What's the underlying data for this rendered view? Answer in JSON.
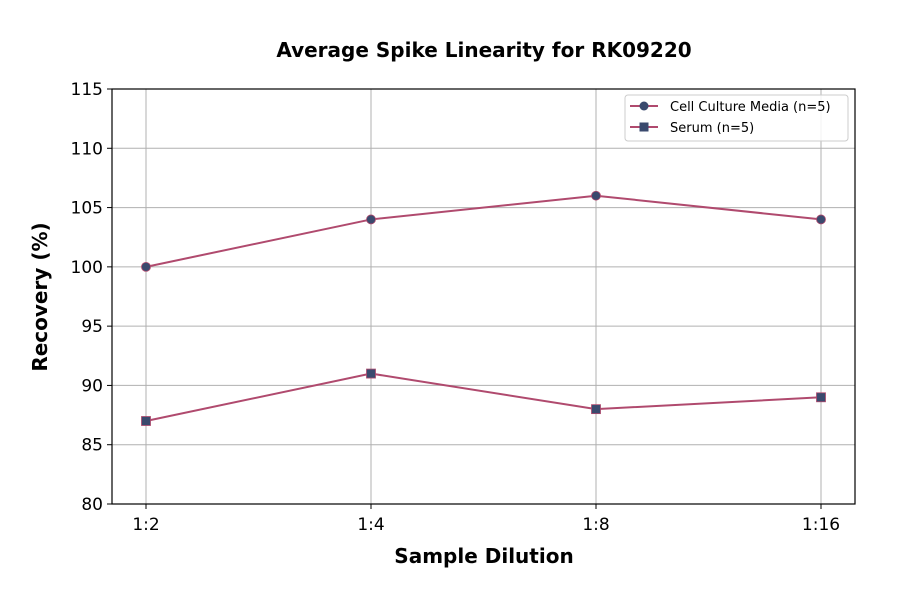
{
  "chart_data": {
    "type": "line",
    "title": "Average Spike Linearity for RK09220",
    "xlabel": "Sample Dilution",
    "ylabel": "Recovery (%)",
    "categories": [
      "1:2",
      "1:4",
      "1:8",
      "1:16"
    ],
    "ylim": [
      80,
      115
    ],
    "yticks": [
      80,
      85,
      90,
      95,
      100,
      105,
      110,
      115
    ],
    "grid": true,
    "legend": "top-right",
    "series": [
      {
        "name": "Cell Culture Media (n=5)",
        "values": [
          100,
          104,
          106,
          104
        ],
        "marker": "circle",
        "line_color": "#b04a6e",
        "marker_color": "#3a4a6e"
      },
      {
        "name": "Serum (n=5)",
        "values": [
          87,
          91,
          88,
          89
        ],
        "marker": "square",
        "line_color": "#b04a6e",
        "marker_color": "#3a4a6e"
      }
    ]
  }
}
